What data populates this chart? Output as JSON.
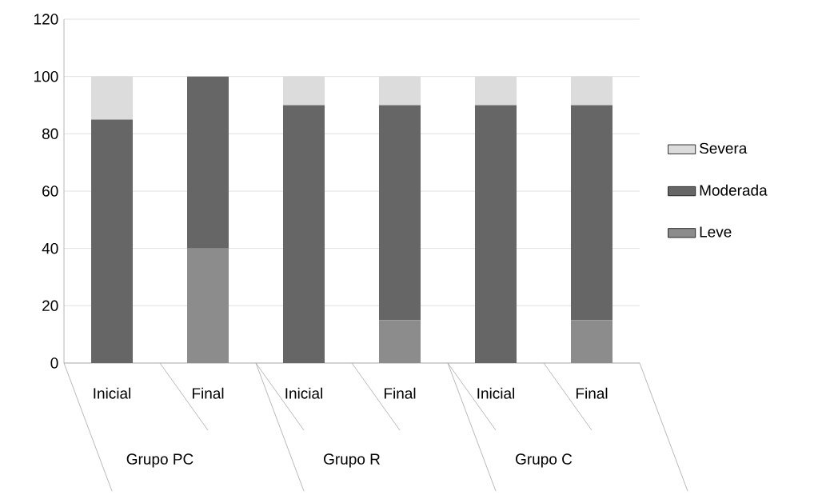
{
  "chart_data": {
    "type": "bar",
    "stacked": true,
    "categories": [
      "Inicial",
      "Final",
      "Inicial",
      "Final",
      "Inicial",
      "Final"
    ],
    "series": [
      {
        "name": "Leve",
        "color": "#8c8c8c",
        "values": [
          0,
          40,
          0,
          15,
          0,
          15
        ]
      },
      {
        "name": "Moderada",
        "color": "#666666",
        "values": [
          85,
          60,
          90,
          75,
          90,
          75
        ]
      },
      {
        "name": "Severa",
        "color": "#dcdcdc",
        "values": [
          15,
          0,
          10,
          10,
          10,
          10
        ]
      }
    ],
    "ylim": [
      0,
      120
    ],
    "yticks": [
      0,
      20,
      40,
      60,
      80,
      100,
      120
    ],
    "grid": "y",
    "legend": "right",
    "annotations": [
      "Grupo PC",
      "Grupo R",
      "Grupo C"
    ]
  }
}
